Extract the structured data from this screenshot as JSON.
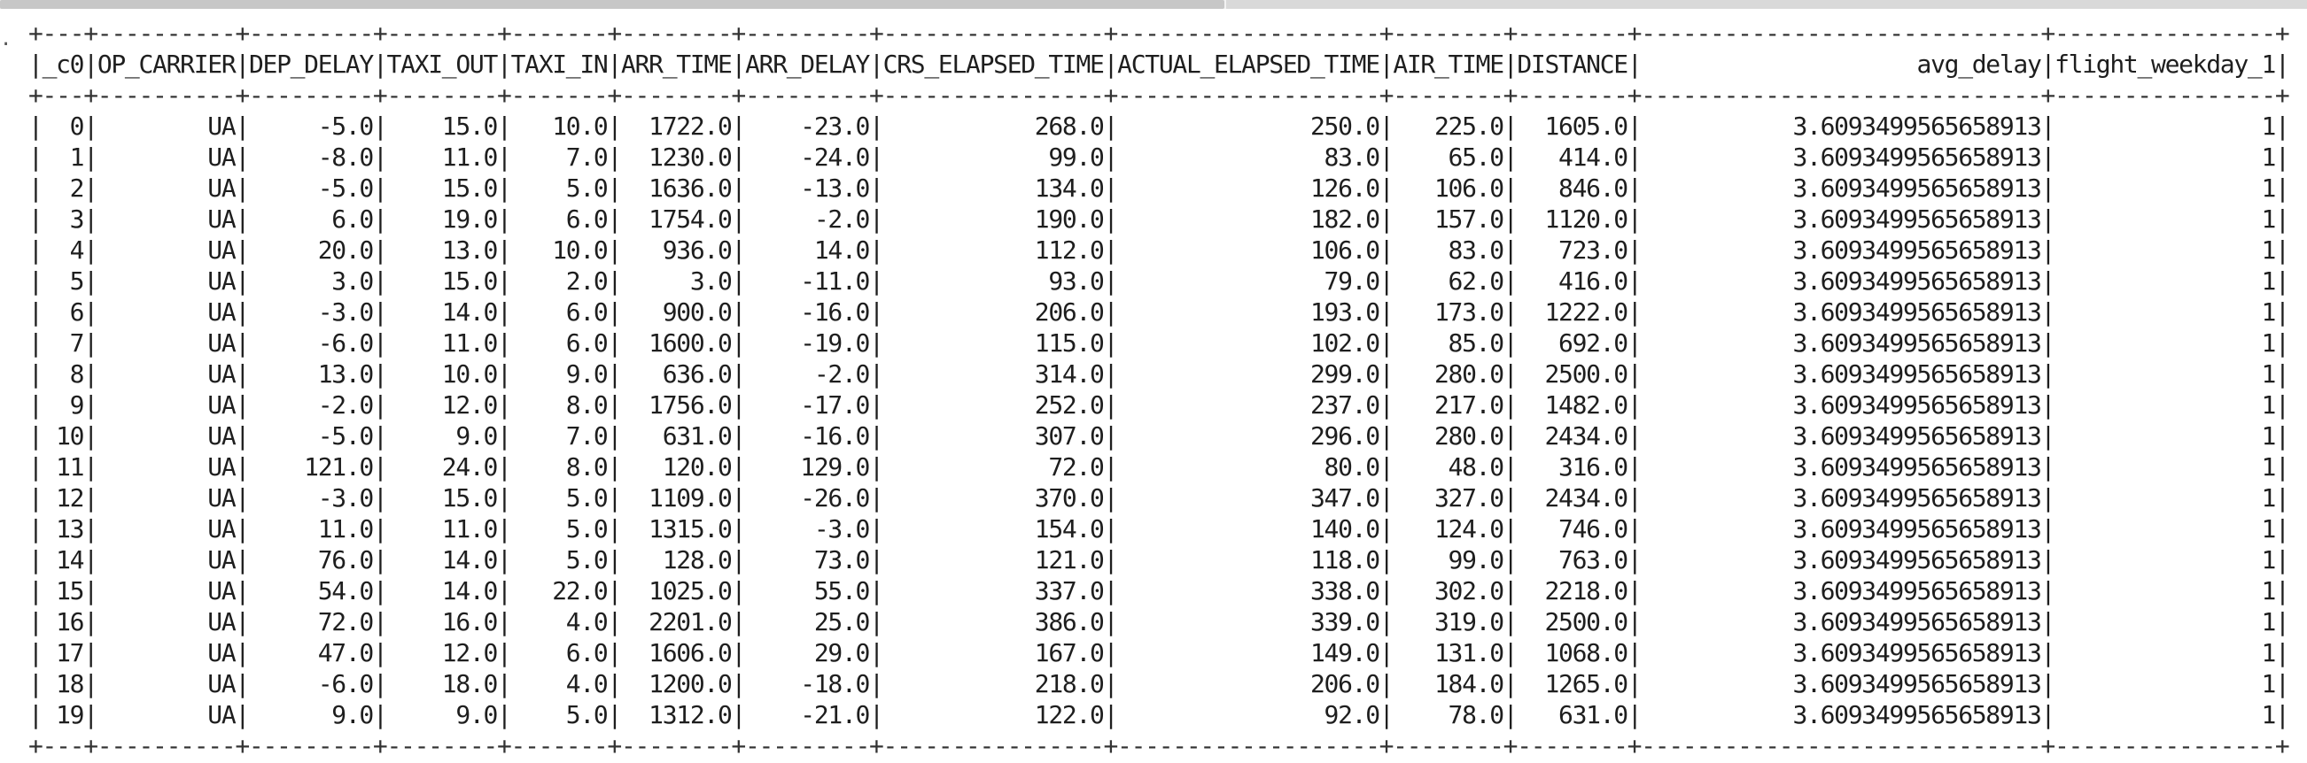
{
  "scroll": {
    "position_fraction": 0.0
  },
  "table": {
    "columns": [
      "_c0",
      "OP_CARRIER",
      "DEP_DELAY",
      "TAXI_OUT",
      "TAXI_IN",
      "ARR_TIME",
      "ARR_DELAY",
      "CRS_ELAPSED_TIME",
      "ACTUAL_ELAPSED_TIME",
      "AIR_TIME",
      "DISTANCE",
      "avg_delay",
      "flight_weekday_1"
    ],
    "widths": [
      3,
      10,
      9,
      8,
      7,
      8,
      9,
      16,
      19,
      8,
      8,
      29,
      16
    ],
    "rows": [
      [
        "0",
        "UA",
        "-5.0",
        "15.0",
        "10.0",
        "1722.0",
        "-23.0",
        "268.0",
        "250.0",
        "225.0",
        "1605.0",
        "3.6093499565658913",
        "1"
      ],
      [
        "1",
        "UA",
        "-8.0",
        "11.0",
        "7.0",
        "1230.0",
        "-24.0",
        "99.0",
        "83.0",
        "65.0",
        "414.0",
        "3.6093499565658913",
        "1"
      ],
      [
        "2",
        "UA",
        "-5.0",
        "15.0",
        "5.0",
        "1636.0",
        "-13.0",
        "134.0",
        "126.0",
        "106.0",
        "846.0",
        "3.6093499565658913",
        "1"
      ],
      [
        "3",
        "UA",
        "6.0",
        "19.0",
        "6.0",
        "1754.0",
        "-2.0",
        "190.0",
        "182.0",
        "157.0",
        "1120.0",
        "3.6093499565658913",
        "1"
      ],
      [
        "4",
        "UA",
        "20.0",
        "13.0",
        "10.0",
        "936.0",
        "14.0",
        "112.0",
        "106.0",
        "83.0",
        "723.0",
        "3.6093499565658913",
        "1"
      ],
      [
        "5",
        "UA",
        "3.0",
        "15.0",
        "2.0",
        "3.0",
        "-11.0",
        "93.0",
        "79.0",
        "62.0",
        "416.0",
        "3.6093499565658913",
        "1"
      ],
      [
        "6",
        "UA",
        "-3.0",
        "14.0",
        "6.0",
        "900.0",
        "-16.0",
        "206.0",
        "193.0",
        "173.0",
        "1222.0",
        "3.6093499565658913",
        "1"
      ],
      [
        "7",
        "UA",
        "-6.0",
        "11.0",
        "6.0",
        "1600.0",
        "-19.0",
        "115.0",
        "102.0",
        "85.0",
        "692.0",
        "3.6093499565658913",
        "1"
      ],
      [
        "8",
        "UA",
        "13.0",
        "10.0",
        "9.0",
        "636.0",
        "-2.0",
        "314.0",
        "299.0",
        "280.0",
        "2500.0",
        "3.6093499565658913",
        "1"
      ],
      [
        "9",
        "UA",
        "-2.0",
        "12.0",
        "8.0",
        "1756.0",
        "-17.0",
        "252.0",
        "237.0",
        "217.0",
        "1482.0",
        "3.6093499565658913",
        "1"
      ],
      [
        "10",
        "UA",
        "-5.0",
        "9.0",
        "7.0",
        "631.0",
        "-16.0",
        "307.0",
        "296.0",
        "280.0",
        "2434.0",
        "3.6093499565658913",
        "1"
      ],
      [
        "11",
        "UA",
        "121.0",
        "24.0",
        "8.0",
        "120.0",
        "129.0",
        "72.0",
        "80.0",
        "48.0",
        "316.0",
        "3.6093499565658913",
        "1"
      ],
      [
        "12",
        "UA",
        "-3.0",
        "15.0",
        "5.0",
        "1109.0",
        "-26.0",
        "370.0",
        "347.0",
        "327.0",
        "2434.0",
        "3.6093499565658913",
        "1"
      ],
      [
        "13",
        "UA",
        "11.0",
        "11.0",
        "5.0",
        "1315.0",
        "-3.0",
        "154.0",
        "140.0",
        "124.0",
        "746.0",
        "3.6093499565658913",
        "1"
      ],
      [
        "14",
        "UA",
        "76.0",
        "14.0",
        "5.0",
        "128.0",
        "73.0",
        "121.0",
        "118.0",
        "99.0",
        "763.0",
        "3.6093499565658913",
        "1"
      ],
      [
        "15",
        "UA",
        "54.0",
        "14.0",
        "22.0",
        "1025.0",
        "55.0",
        "337.0",
        "338.0",
        "302.0",
        "2218.0",
        "3.6093499565658913",
        "1"
      ],
      [
        "16",
        "UA",
        "72.0",
        "16.0",
        "4.0",
        "2201.0",
        "25.0",
        "386.0",
        "339.0",
        "319.0",
        "2500.0",
        "3.6093499565658913",
        "1"
      ],
      [
        "17",
        "UA",
        "47.0",
        "12.0",
        "6.0",
        "1606.0",
        "29.0",
        "167.0",
        "149.0",
        "131.0",
        "1068.0",
        "3.6093499565658913",
        "1"
      ],
      [
        "18",
        "UA",
        "-6.0",
        "18.0",
        "4.0",
        "1200.0",
        "-18.0",
        "218.0",
        "206.0",
        "184.0",
        "1265.0",
        "3.6093499565658913",
        "1"
      ],
      [
        "19",
        "UA",
        "9.0",
        "9.0",
        "5.0",
        "1312.0",
        "-21.0",
        "122.0",
        "92.0",
        "78.0",
        "631.0",
        "3.6093499565658913",
        "1"
      ]
    ]
  }
}
